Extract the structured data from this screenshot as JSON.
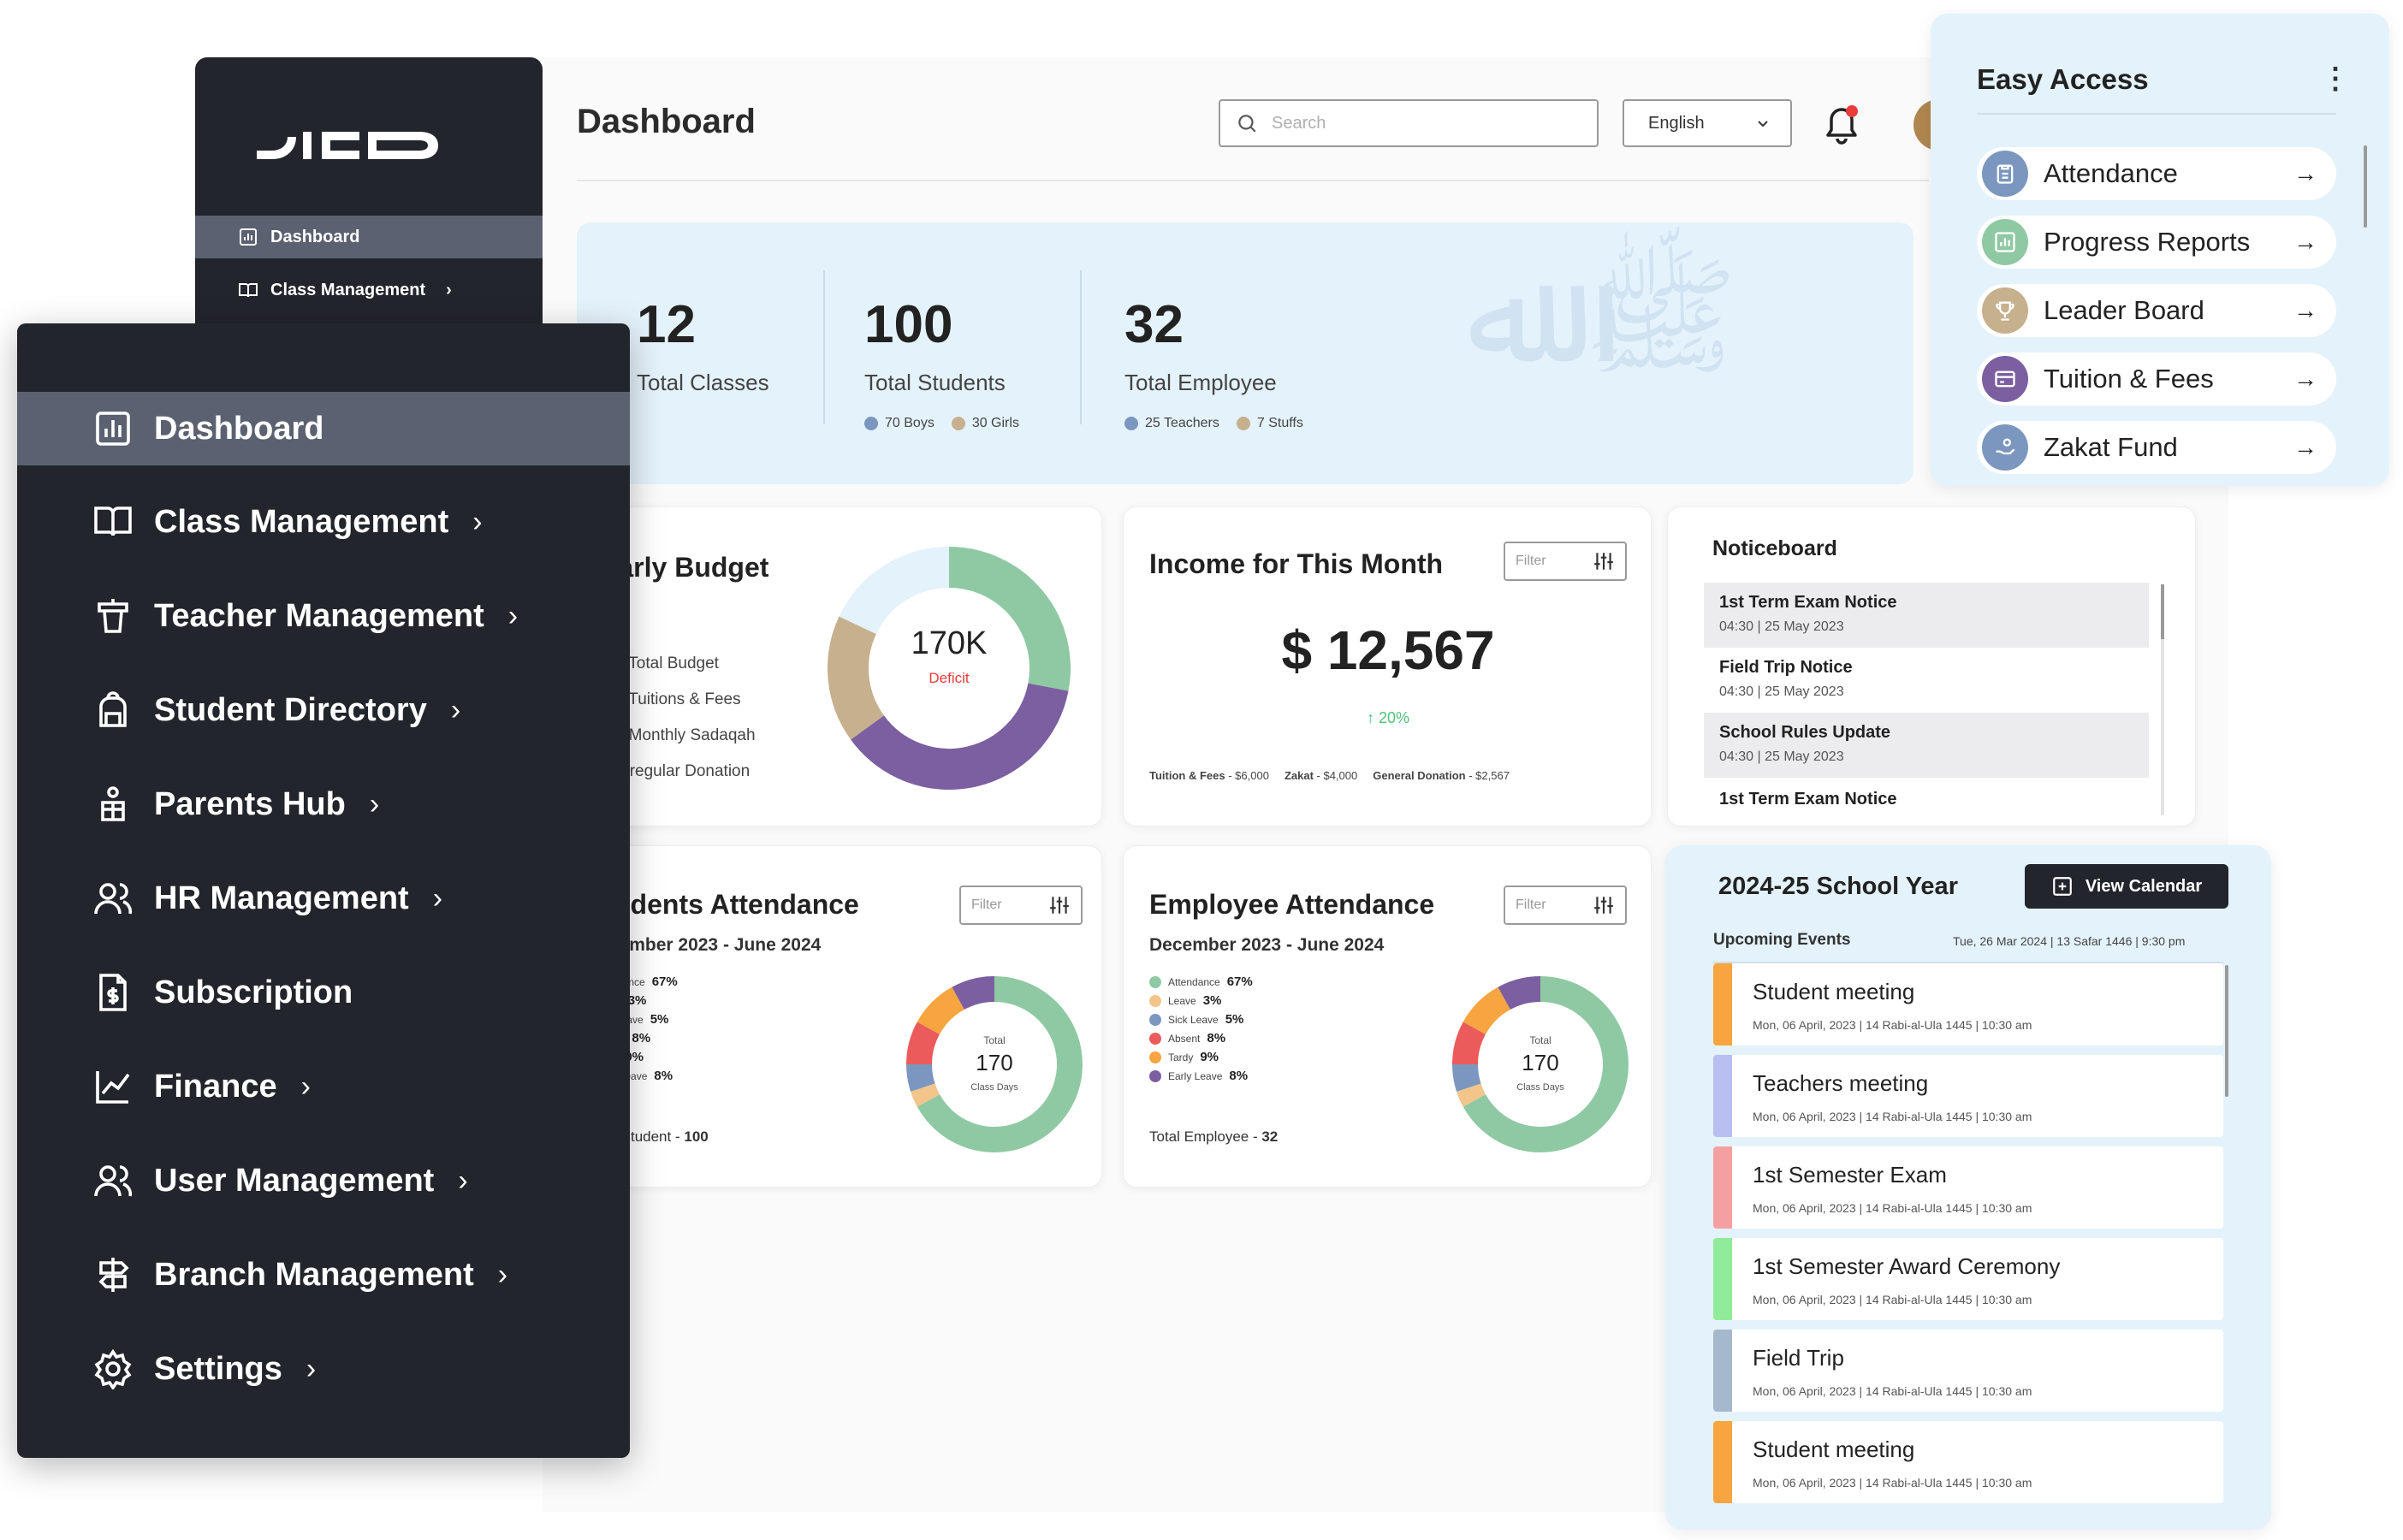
{
  "app": {
    "logo": "DICO"
  },
  "back_sidebar": {
    "items": [
      {
        "label": "Dashboard"
      },
      {
        "label": "Class Management"
      }
    ]
  },
  "header": {
    "title": "Dashboard",
    "search_placeholder": "Search",
    "language": "English"
  },
  "stats": {
    "classes": {
      "value": "12",
      "label": "Total Classes"
    },
    "students": {
      "value": "100",
      "label": "Total Students",
      "boys": "70 Boys",
      "girls": "30 Girls"
    },
    "employees": {
      "value": "32",
      "label": "Total Employee",
      "teachers": "25 Teachers",
      "stuffs": "7 Stuffs"
    }
  },
  "budget": {
    "title": "Yearly Budget",
    "center_value": "170K",
    "center_label": "Deficit",
    "lines": [
      "560K Total Budget",
      "220K Tuitions & Fees",
      "150K Monthly Sadaqah",
      "20K Irregular Donation"
    ],
    "chart_data": {
      "type": "pie",
      "categories": [
        "Green",
        "Purple",
        "Tan",
        "Light blue"
      ],
      "values": [
        28,
        37,
        17,
        18
      ],
      "colors": [
        "#8fc9a4",
        "#7c5fa0",
        "#c7b08d",
        "#e4f2fb"
      ]
    }
  },
  "income": {
    "title": "Income for This Month",
    "filter": "Filter",
    "amount": "$ 12,567",
    "change": "↑ 20%",
    "breakdown": [
      {
        "label": "Tuition & Fees",
        "value": "$6,000"
      },
      {
        "label": "Zakat",
        "value": "$4,000"
      },
      {
        "label": "General Donation",
        "value": "$2,567"
      }
    ]
  },
  "noticeboard": {
    "title": "Noticeboard",
    "items": [
      {
        "title": "1st Term Exam Notice",
        "date": "04:30 | 25 May 2023"
      },
      {
        "title": "Field Trip Notice",
        "date": "04:30 | 25 May 2023"
      },
      {
        "title": "School Rules Update",
        "date": "04:30 | 25 May 2023"
      },
      {
        "title": "1st Term Exam Notice",
        "date": ""
      }
    ]
  },
  "student_attendance": {
    "title": "Students Attendance",
    "period": "December 2023 - June 2024",
    "filter": "Filter",
    "legend": [
      {
        "label": "Attendance",
        "value": "67%"
      },
      {
        "label": "Leave",
        "value": "3%"
      },
      {
        "label": "Sick Leave",
        "value": "5%"
      },
      {
        "label": "Absent",
        "value": "8%"
      },
      {
        "label": "Tardy",
        "value": "9%"
      },
      {
        "label": "Early Leave",
        "value": "8%"
      }
    ],
    "total_label": "Total Student",
    "total_value": "100",
    "center_top": "Total",
    "center_value": "170",
    "center_bottom": "Class Days",
    "chart_data": {
      "type": "pie",
      "categories": [
        "Attendance",
        "Leave",
        "Sick Leave",
        "Absent",
        "Tardy",
        "Early Leave"
      ],
      "values": [
        67,
        3,
        5,
        8,
        9,
        8
      ],
      "colors": [
        "#8fc9a4",
        "#f3c58a",
        "#7b97bf",
        "#ec5b5b",
        "#f6a541",
        "#7c5fa0"
      ]
    }
  },
  "employee_attendance": {
    "title": "Employee Attendance",
    "period": "December 2023 - June 2024",
    "filter": "Filter",
    "legend": [
      {
        "label": "Attendance",
        "value": "67%"
      },
      {
        "label": "Leave",
        "value": "3%"
      },
      {
        "label": "Sick Leave",
        "value": "5%"
      },
      {
        "label": "Absent",
        "value": "8%"
      },
      {
        "label": "Tardy",
        "value": "9%"
      },
      {
        "label": "Early Leave",
        "value": "8%"
      }
    ],
    "total_label": "Total Employee",
    "total_value": "32",
    "center_top": "Total",
    "center_value": "170",
    "center_bottom": "Class Days",
    "chart_data": {
      "type": "pie",
      "categories": [
        "Attendance",
        "Leave",
        "Sick Leave",
        "Absent",
        "Tardy",
        "Early Leave"
      ],
      "values": [
        67,
        3,
        5,
        8,
        9,
        8
      ],
      "colors": [
        "#8fc9a4",
        "#f3c58a",
        "#7b97bf",
        "#ec5b5b",
        "#f6a541",
        "#7c5fa0"
      ]
    }
  },
  "easy_access": {
    "title": "Easy Access",
    "items": [
      {
        "label": "Attendance",
        "color": "#7b97bf"
      },
      {
        "label": "Progress Reports",
        "color": "#8fc9a4"
      },
      {
        "label": "Leader Board",
        "color": "#c7b08d"
      },
      {
        "label": "Tuition & Fees",
        "color": "#7c5fa0"
      },
      {
        "label": "Zakat Fund",
        "color": "#7b97bf"
      }
    ]
  },
  "school_year": {
    "title": "2024-25 School Year",
    "view_calendar": "View Calendar",
    "upcoming": "Upcoming Events",
    "today": "Tue, 26 Mar 2024 | 13 Safar 1446 | 9:30 pm",
    "events": [
      {
        "name": "Student meeting",
        "date": "Mon, 06 April, 2023 | 14 Rabi-al-Ula 1445 | 10:30 am",
        "color": "#f6a541"
      },
      {
        "name": "Teachers meeting",
        "date": "Mon, 06 April, 2023 | 14 Rabi-al-Ula 1445 | 10:30 am",
        "color": "#b9bff0"
      },
      {
        "name": "1st Semester Exam",
        "date": "Mon, 06 April, 2023 | 14 Rabi-al-Ula 1445 | 10:30 am",
        "color": "#f5a0a0"
      },
      {
        "name": "1st Semester Award Ceremony",
        "date": "Mon, 06 April, 2023 | 14 Rabi-al-Ula 1445 | 10:30 am",
        "color": "#90ec9a"
      },
      {
        "name": "Field Trip",
        "date": "Mon, 06 April, 2023 | 14 Rabi-al-Ula 1445 | 10:30 am",
        "color": "#a5b8cc"
      },
      {
        "name": "Student meeting",
        "date": "Mon, 06 April, 2023 | 14 Rabi-al-Ula 1445 | 10:30 am",
        "color": "#f6a541"
      }
    ]
  },
  "sidebar": {
    "items": [
      {
        "label": "Dashboard",
        "icon": "chart-bar-icon"
      },
      {
        "label": "Class Management",
        "icon": "book-icon"
      },
      {
        "label": "Teacher Management",
        "icon": "podium-icon"
      },
      {
        "label": "Student Directory",
        "icon": "backpack-icon"
      },
      {
        "label": "Parents Hub",
        "icon": "parents-icon"
      },
      {
        "label": "HR Management",
        "icon": "users-icon"
      },
      {
        "label": "Subscription",
        "icon": "invoice-icon"
      },
      {
        "label": "Finance",
        "icon": "trend-icon"
      },
      {
        "label": "User Management",
        "icon": "users-icon"
      },
      {
        "label": "Branch Management",
        "icon": "signpost-icon"
      },
      {
        "label": "Settings",
        "icon": "gear-icon"
      }
    ]
  }
}
